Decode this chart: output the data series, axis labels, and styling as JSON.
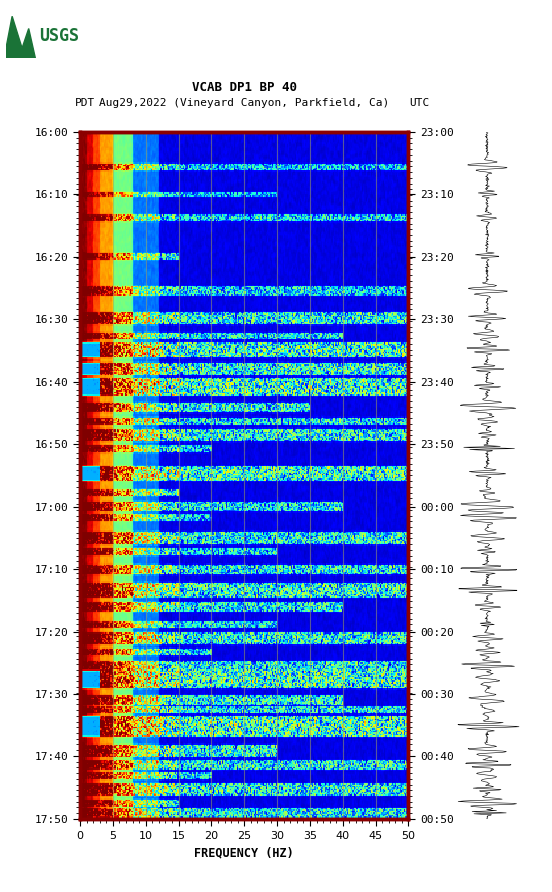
{
  "title_line1": "VCAB DP1 BP 40",
  "title_line2_pdt": "PDT",
  "title_line2_date": "Aug29,2022 (Vineyard Canyon, Parkfield, Ca)",
  "title_line2_utc": "UTC",
  "left_times": [
    "16:00",
    "16:10",
    "16:20",
    "16:30",
    "16:40",
    "16:50",
    "17:00",
    "17:10",
    "17:20",
    "17:30",
    "17:40",
    "17:50"
  ],
  "right_times": [
    "23:00",
    "23:10",
    "23:20",
    "23:30",
    "23:40",
    "23:50",
    "00:00",
    "00:10",
    "00:20",
    "00:30",
    "00:40",
    "00:50"
  ],
  "freq_min": 0,
  "freq_max": 50,
  "xlabel": "FREQUENCY (HZ)",
  "colormap": "jet",
  "background_color": "#ffffff",
  "border_color": "#8B0000",
  "grid_color": "#a0a060",
  "grid_alpha": 0.55,
  "grid_freqs": [
    5,
    10,
    15,
    20,
    25,
    30,
    35,
    40,
    45
  ],
  "waveform_color": "#000000",
  "usgs_green": "#1a7337",
  "fig_width": 5.52,
  "fig_height": 8.92
}
